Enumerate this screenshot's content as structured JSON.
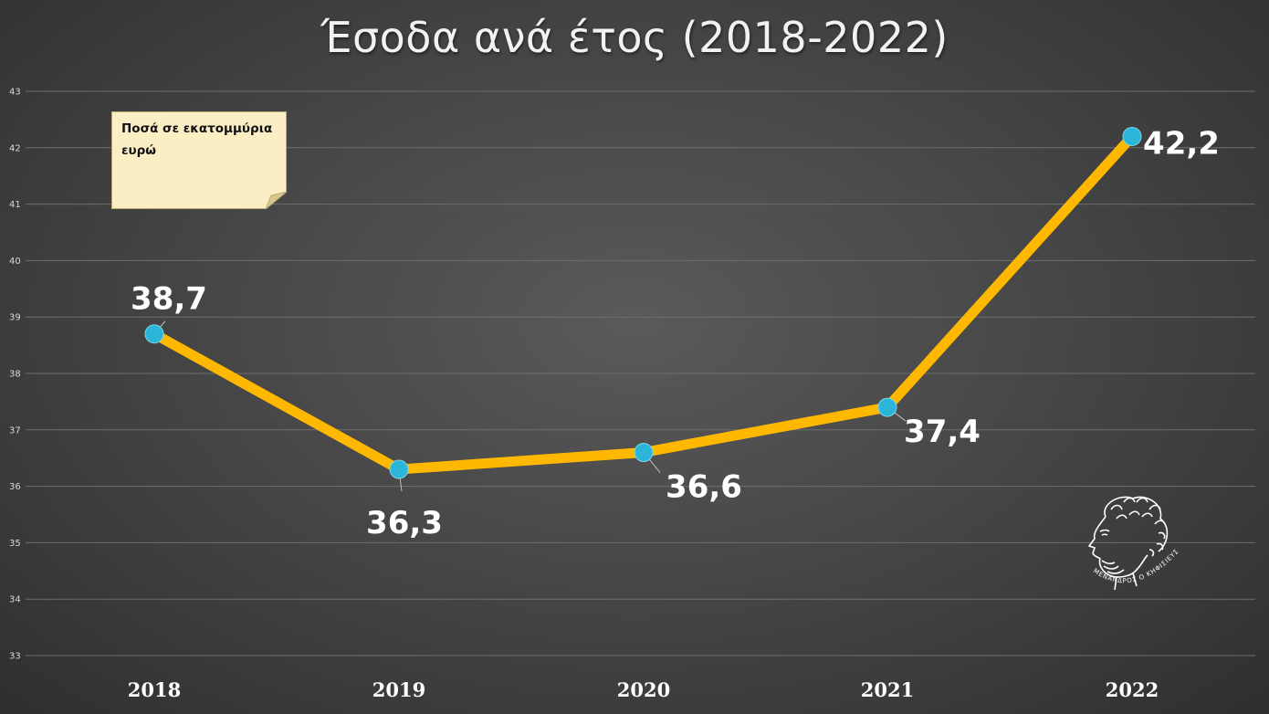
{
  "chart_data": {
    "type": "line",
    "title": "Έσοδα ανά έτος (2018-2022)",
    "annotation": "Ποσά σε εκατομμύρια ευρώ",
    "categories": [
      "2018",
      "2019",
      "2020",
      "2021",
      "2022"
    ],
    "values": [
      38.7,
      36.3,
      36.6,
      37.4,
      42.2
    ],
    "data_labels": [
      "38,7",
      "36,3",
      "36,6",
      "37,4",
      "42,2"
    ],
    "y_ticks": [
      33,
      34,
      35,
      36,
      37,
      38,
      39,
      40,
      41,
      42,
      43
    ],
    "ylim": [
      33,
      43
    ],
    "grid": true,
    "line_color": "#ffb800",
    "marker_color": "#2bb6d9",
    "background_color": "#474747"
  },
  "logo": {
    "caption": "ΜΕΝΑΝΔΡΟΣ Ο ΚΗΦΙΣΙΕΥΣ"
  }
}
